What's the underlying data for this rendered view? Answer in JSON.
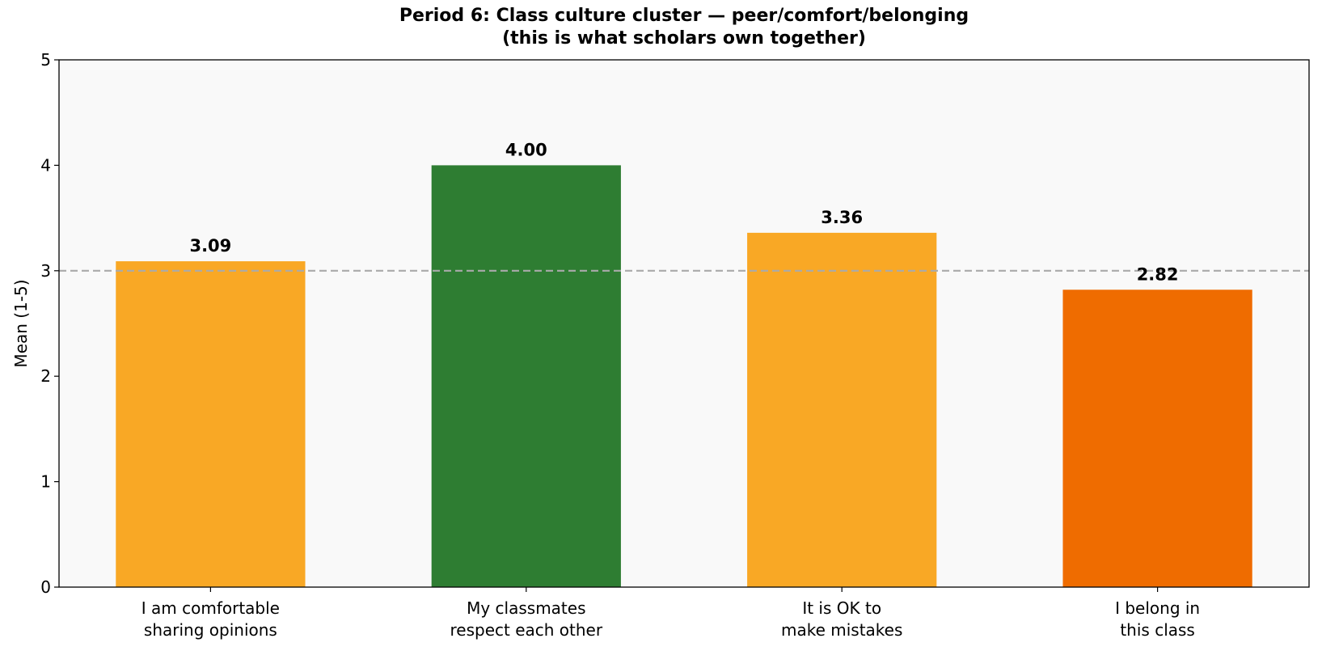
{
  "chart_data": {
    "type": "bar",
    "title": "Period 6: Class culture cluster — peer/comfort/belonging\n(this is what scholars own together)",
    "y_label": "Mean (1-5)",
    "categories": [
      "I am comfortable\nsharing opinions",
      "My classmates\nrespect each other",
      "It is OK to\nmake mistakes",
      "I belong in\nthis class"
    ],
    "values": [
      3.09,
      4.0,
      3.36,
      2.82
    ],
    "value_labels": [
      "3.09",
      "4.00",
      "3.36",
      "2.82"
    ],
    "colors": [
      "#f9a825",
      "#2e7d32",
      "#f9a825",
      "#ef6c00"
    ],
    "reference_line": 3,
    "ylim": [
      0,
      5
    ],
    "yticks": [
      0,
      1,
      2,
      3,
      4,
      5
    ]
  }
}
